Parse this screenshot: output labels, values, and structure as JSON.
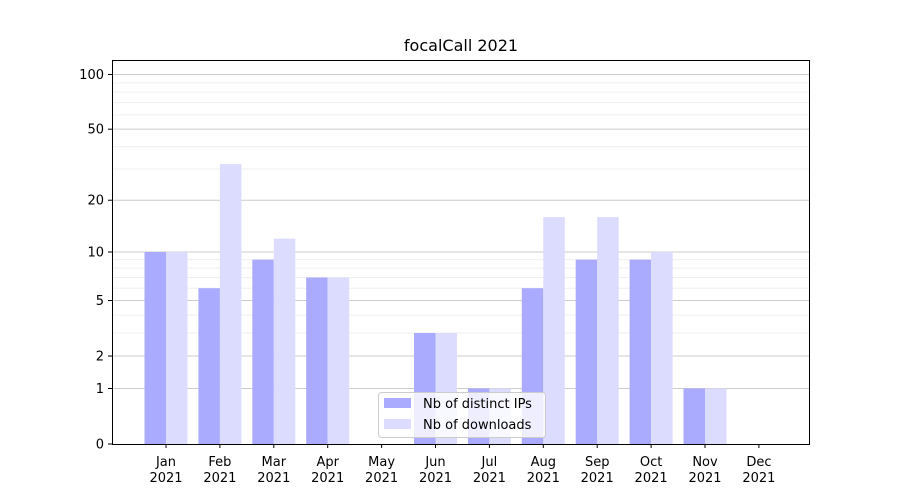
{
  "chart_data": {
    "type": "bar",
    "title": "focalCall 2021",
    "xlabel": "",
    "ylabel": "",
    "categories": [
      [
        "Jan",
        "2021"
      ],
      [
        "Feb",
        "2021"
      ],
      [
        "Mar",
        "2021"
      ],
      [
        "Apr",
        "2021"
      ],
      [
        "May",
        "2021"
      ],
      [
        "Jun",
        "2021"
      ],
      [
        "Jul",
        "2021"
      ],
      [
        "Aug",
        "2021"
      ],
      [
        "Sep",
        "2021"
      ],
      [
        "Oct",
        "2021"
      ],
      [
        "Nov",
        "2021"
      ],
      [
        "Dec",
        "2021"
      ]
    ],
    "series": [
      {
        "name": "Nb of distinct IPs",
        "color": "#aaaaff",
        "values": [
          10,
          6,
          9,
          7,
          0,
          3,
          1,
          6,
          9,
          9,
          1,
          0
        ]
      },
      {
        "name": "Nb of downloads",
        "color": "#dcdcff",
        "values": [
          10,
          32,
          12,
          7,
          0,
          3,
          1,
          16,
          16,
          10,
          1,
          0
        ]
      }
    ],
    "y_scale": "symlog",
    "ylim": [
      0,
      120
    ],
    "yticks": [
      0,
      1,
      2,
      5,
      10,
      20,
      50,
      100
    ],
    "ytick_labels": [
      "0",
      "1",
      "2",
      "5",
      "10",
      "20",
      "50",
      "100"
    ],
    "grid": true,
    "legend_position": "lower center"
  }
}
